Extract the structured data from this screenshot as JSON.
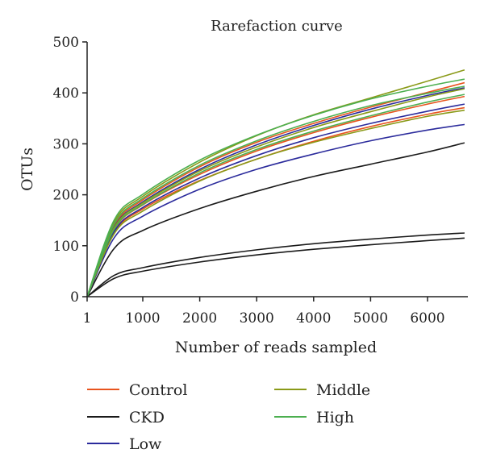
{
  "chart_data": {
    "type": "line",
    "title": "Rarefaction curve",
    "xlabel": "Number of reads sampled",
    "ylabel": "OTUs",
    "xlim": [
      1,
      6900
    ],
    "ylim": [
      0,
      500
    ],
    "xticks": [
      1,
      1000,
      2000,
      3000,
      4000,
      5000,
      6000
    ],
    "yticks": [
      0,
      100,
      200,
      300,
      400,
      500
    ],
    "grid": false,
    "legend": {
      "placement": "bottom",
      "entries": [
        {
          "name": "Control",
          "color": "#e8541e"
        },
        {
          "name": "CKD",
          "color": "#1a1a1a"
        },
        {
          "name": "Low",
          "color": "#2b2b9c"
        },
        {
          "name": "Middle",
          "color": "#8a9a18"
        },
        {
          "name": "High",
          "color": "#4caf50"
        }
      ]
    },
    "series": [
      {
        "group": "Control",
        "color": "#e8541e",
        "x": [
          1,
          500,
          1000,
          2000,
          3000,
          4000,
          5000,
          6000,
          6650
        ],
        "y": [
          0,
          140,
          190,
          255,
          303,
          340,
          372,
          401,
          420
        ]
      },
      {
        "group": "Control",
        "color": "#e8541e",
        "x": [
          1,
          500,
          1000,
          2000,
          3000,
          4000,
          5000,
          6000,
          6650
        ],
        "y": [
          0,
          132,
          180,
          240,
          286,
          322,
          352,
          378,
          393
        ]
      },
      {
        "group": "Control",
        "color": "#e8541e",
        "x": [
          1,
          500,
          1000,
          2000,
          3000,
          4000,
          5000,
          6000,
          6650
        ],
        "y": [
          0,
          126,
          172,
          228,
          270,
          305,
          334,
          358,
          371
        ]
      },
      {
        "group": "CKD",
        "color": "#1a1a1a",
        "x": [
          1,
          500,
          1000,
          2000,
          3000,
          4000,
          5000,
          6000,
          6650
        ],
        "y": [
          0,
          95,
          130,
          173,
          207,
          236,
          260,
          284,
          302
        ]
      },
      {
        "group": "CKD",
        "color": "#1a1a1a",
        "x": [
          1,
          500,
          1000,
          2000,
          3000,
          4000,
          5000,
          6000,
          6650
        ],
        "y": [
          0,
          42,
          57,
          77,
          92,
          104,
          113,
          121,
          125
        ]
      },
      {
        "group": "CKD",
        "color": "#1a1a1a",
        "x": [
          1,
          500,
          1000,
          2000,
          3000,
          4000,
          5000,
          6000,
          6650
        ],
        "y": [
          0,
          36,
          50,
          68,
          82,
          93,
          102,
          110,
          115
        ]
      },
      {
        "group": "Low",
        "color": "#2b2b9c",
        "x": [
          1,
          500,
          1000,
          2000,
          3000,
          4000,
          5000,
          6000,
          6650
        ],
        "y": [
          0,
          137,
          186,
          250,
          298,
          336,
          368,
          395,
          410
        ]
      },
      {
        "group": "Low",
        "color": "#2b2b9c",
        "x": [
          1,
          500,
          1000,
          2000,
          3000,
          4000,
          5000,
          6000,
          6650
        ],
        "y": [
          0,
          128,
          175,
          233,
          277,
          312,
          340,
          364,
          378
        ]
      },
      {
        "group": "Low",
        "color": "#2b2b9c",
        "x": [
          1,
          500,
          1000,
          2000,
          3000,
          4000,
          5000,
          6000,
          6650
        ],
        "y": [
          0,
          116,
          158,
          211,
          250,
          280,
          306,
          327,
          338
        ]
      },
      {
        "group": "Middle",
        "color": "#8a9a18",
        "x": [
          1,
          500,
          1000,
          2000,
          3000,
          4000,
          5000,
          6000,
          6650
        ],
        "y": [
          0,
          147,
          197,
          264,
          316,
          357,
          390,
          423,
          445
        ]
      },
      {
        "group": "Middle",
        "color": "#8a9a18",
        "x": [
          1,
          500,
          1000,
          2000,
          3000,
          4000,
          5000,
          6000,
          6650
        ],
        "y": [
          0,
          136,
          184,
          247,
          294,
          332,
          363,
          392,
          408
        ]
      },
      {
        "group": "Middle",
        "color": "#8a9a18",
        "x": [
          1,
          500,
          1000,
          2000,
          3000,
          4000,
          5000,
          6000,
          6650
        ],
        "y": [
          0,
          124,
          168,
          227,
          270,
          303,
          330,
          354,
          366
        ]
      },
      {
        "group": "High",
        "color": "#4caf50",
        "x": [
          1,
          500,
          1000,
          2000,
          3000,
          4000,
          5000,
          6000,
          6650
        ],
        "y": [
          0,
          151,
          201,
          268,
          317,
          356,
          388,
          413,
          427
        ]
      },
      {
        "group": "High",
        "color": "#4caf50",
        "x": [
          1,
          500,
          1000,
          2000,
          3000,
          4000,
          5000,
          6000,
          6650
        ],
        "y": [
          0,
          143,
          193,
          258,
          306,
          344,
          375,
          399,
          413
        ]
      },
      {
        "group": "High",
        "color": "#4caf50",
        "x": [
          1,
          500,
          1000,
          2000,
          3000,
          4000,
          5000,
          6000,
          6650
        ],
        "y": [
          0,
          133,
          181,
          243,
          289,
          325,
          355,
          382,
          397
        ]
      }
    ]
  }
}
